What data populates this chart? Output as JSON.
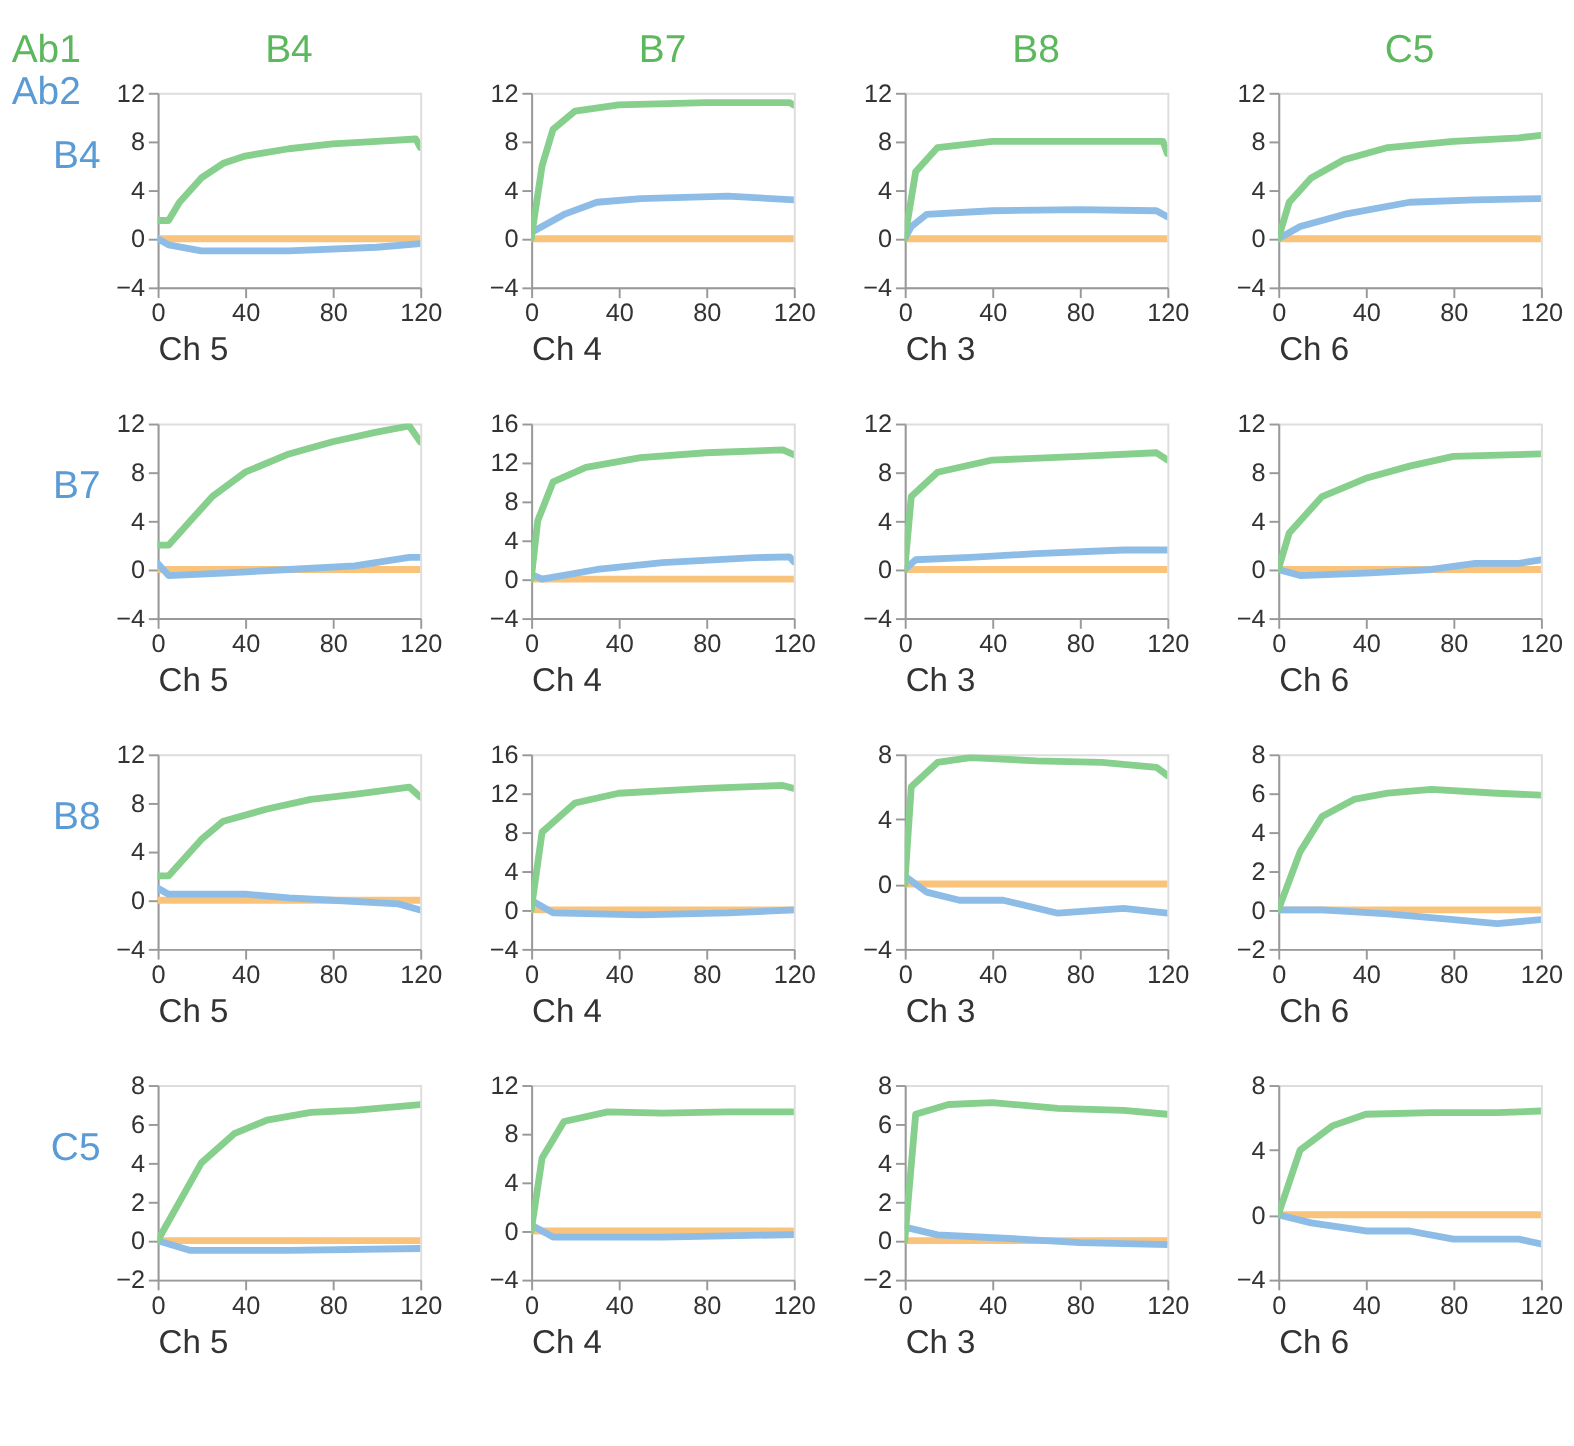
{
  "chart_data": [
    {
      "type": "line",
      "title": "B4",
      "ylabel": "B4",
      "xlabel": "Ch 5",
      "annotations": [
        "Ab1",
        "Ab2"
      ],
      "xlim": [
        0,
        120
      ],
      "xticks": [
        0,
        40,
        80,
        120
      ],
      "ylim": [
        -4,
        12
      ],
      "yticks": [
        -4,
        0,
        4,
        8,
        12
      ],
      "grid": false,
      "legend": false,
      "series": [
        {
          "color": "#86cf8c",
          "x": [
            0,
            5,
            10,
            20,
            30,
            40,
            60,
            80,
            100,
            118,
            120
          ],
          "values": [
            1.5,
            1.5,
            3,
            5,
            6.2,
            6.8,
            7.4,
            7.8,
            8,
            8.2,
            7.5
          ]
        },
        {
          "color": "#8dbde6",
          "x": [
            0,
            5,
            20,
            60,
            100,
            120
          ],
          "values": [
            0,
            -0.5,
            -1,
            -1,
            -0.7,
            -0.4
          ]
        },
        {
          "color": "#f9c37c",
          "x": [
            0,
            120
          ],
          "values": [
            0,
            0
          ]
        }
      ]
    },
    {
      "type": "line",
      "title": "B7",
      "xlabel": "Ch 4",
      "xlim": [
        0,
        120
      ],
      "xticks": [
        0,
        40,
        80,
        120
      ],
      "ylim": [
        -4,
        12
      ],
      "yticks": [
        -4,
        0,
        4,
        8,
        12
      ],
      "grid": false,
      "legend": false,
      "series": [
        {
          "color": "#86cf8c",
          "x": [
            0,
            5,
            10,
            20,
            40,
            80,
            118,
            120
          ],
          "values": [
            0,
            6,
            9,
            10.5,
            11,
            11.2,
            11.2,
            11
          ]
        },
        {
          "color": "#8dbde6",
          "x": [
            0,
            5,
            15,
            30,
            50,
            90,
            120
          ],
          "values": [
            0.5,
            1,
            2,
            3,
            3.3,
            3.5,
            3.2
          ]
        },
        {
          "color": "#f9c37c",
          "x": [
            0,
            120
          ],
          "values": [
            0,
            0
          ]
        }
      ]
    },
    {
      "type": "line",
      "title": "B8",
      "xlabel": "Ch 3",
      "xlim": [
        0,
        120
      ],
      "xticks": [
        0,
        40,
        80,
        120
      ],
      "ylim": [
        -4,
        12
      ],
      "yticks": [
        -4,
        0,
        4,
        8,
        12
      ],
      "grid": false,
      "legend": false,
      "series": [
        {
          "color": "#86cf8c",
          "x": [
            0,
            5,
            15,
            40,
            118,
            120
          ],
          "values": [
            0,
            5.5,
            7.5,
            8,
            8,
            7
          ]
        },
        {
          "color": "#8dbde6",
          "x": [
            0,
            3,
            10,
            40,
            80,
            115,
            120
          ],
          "values": [
            0,
            1,
            2,
            2.3,
            2.4,
            2.3,
            1.8
          ]
        },
        {
          "color": "#f9c37c",
          "x": [
            0,
            120
          ],
          "values": [
            0,
            0
          ]
        }
      ]
    },
    {
      "type": "line",
      "title": "C5",
      "xlabel": "Ch 6",
      "xlim": [
        0,
        120
      ],
      "xticks": [
        0,
        40,
        80,
        120
      ],
      "ylim": [
        -4,
        12
      ],
      "yticks": [
        -4,
        0,
        4,
        8,
        12
      ],
      "grid": false,
      "legend": false,
      "series": [
        {
          "color": "#86cf8c",
          "x": [
            0,
            5,
            15,
            30,
            50,
            80,
            110,
            120
          ],
          "values": [
            0,
            3,
            5,
            6.5,
            7.5,
            8,
            8.3,
            8.5
          ]
        },
        {
          "color": "#8dbde6",
          "x": [
            0,
            10,
            30,
            60,
            90,
            120
          ],
          "values": [
            0,
            1,
            2,
            3,
            3.2,
            3.3
          ]
        },
        {
          "color": "#f9c37c",
          "x": [
            0,
            120
          ],
          "values": [
            0,
            0
          ]
        }
      ]
    },
    {
      "type": "line",
      "ylabel": "B7",
      "xlabel": "Ch 5",
      "xlim": [
        0,
        120
      ],
      "xticks": [
        0,
        40,
        80,
        120
      ],
      "ylim": [
        -4,
        12
      ],
      "yticks": [
        -4,
        0,
        4,
        8,
        12
      ],
      "grid": false,
      "legend": false,
      "series": [
        {
          "color": "#86cf8c",
          "x": [
            0,
            5,
            15,
            25,
            40,
            60,
            80,
            100,
            115,
            120
          ],
          "values": [
            2,
            2,
            4,
            6,
            8,
            9.5,
            10.5,
            11.3,
            11.8,
            10.5
          ]
        },
        {
          "color": "#8dbde6",
          "x": [
            0,
            5,
            30,
            60,
            90,
            115,
            120
          ],
          "values": [
            0.5,
            -0.5,
            -0.3,
            0,
            0.3,
            1,
            1
          ]
        },
        {
          "color": "#f9c37c",
          "x": [
            0,
            120
          ],
          "values": [
            0,
            0
          ]
        }
      ]
    },
    {
      "type": "line",
      "xlabel": "Ch 4",
      "xlim": [
        0,
        120
      ],
      "xticks": [
        0,
        40,
        80,
        120
      ],
      "ylim": [
        -4,
        16
      ],
      "yticks": [
        -4,
        0,
        4,
        8,
        12,
        16
      ],
      "grid": false,
      "legend": false,
      "series": [
        {
          "color": "#86cf8c",
          "x": [
            0,
            3,
            10,
            25,
            50,
            80,
            115,
            120
          ],
          "values": [
            0,
            6,
            10,
            11.5,
            12.5,
            13,
            13.3,
            12.8
          ]
        },
        {
          "color": "#8dbde6",
          "x": [
            0,
            5,
            30,
            60,
            100,
            118,
            120
          ],
          "values": [
            0.5,
            0,
            1,
            1.7,
            2.2,
            2.3,
            1.8
          ]
        },
        {
          "color": "#f9c37c",
          "x": [
            0,
            120
          ],
          "values": [
            0,
            0
          ]
        }
      ]
    },
    {
      "type": "line",
      "xlabel": "Ch 3",
      "xlim": [
        0,
        120
      ],
      "xticks": [
        0,
        40,
        80,
        120
      ],
      "ylim": [
        -4,
        12
      ],
      "yticks": [
        -4,
        0,
        4,
        8,
        12
      ],
      "grid": false,
      "legend": false,
      "series": [
        {
          "color": "#86cf8c",
          "x": [
            0,
            3,
            15,
            40,
            80,
            115,
            120
          ],
          "values": [
            0,
            6,
            8,
            9,
            9.3,
            9.6,
            9
          ]
        },
        {
          "color": "#8dbde6",
          "x": [
            0,
            5,
            30,
            60,
            100,
            120
          ],
          "values": [
            0,
            0.8,
            1,
            1.3,
            1.6,
            1.6
          ]
        },
        {
          "color": "#f9c37c",
          "x": [
            0,
            120
          ],
          "values": [
            0,
            0
          ]
        }
      ]
    },
    {
      "type": "line",
      "xlabel": "Ch 6",
      "xlim": [
        0,
        120
      ],
      "xticks": [
        0,
        40,
        80,
        120
      ],
      "ylim": [
        -4,
        12
      ],
      "yticks": [
        -4,
        0,
        4,
        8,
        12
      ],
      "grid": false,
      "legend": false,
      "series": [
        {
          "color": "#86cf8c",
          "x": [
            0,
            5,
            20,
            40,
            60,
            80,
            120
          ],
          "values": [
            0,
            3,
            6,
            7.5,
            8.5,
            9.3,
            9.5
          ]
        },
        {
          "color": "#8dbde6",
          "x": [
            0,
            10,
            40,
            70,
            90,
            110,
            120
          ],
          "values": [
            0,
            -0.5,
            -0.3,
            0,
            0.5,
            0.5,
            0.8
          ]
        },
        {
          "color": "#f9c37c",
          "x": [
            0,
            120
          ],
          "values": [
            0,
            0
          ]
        }
      ]
    },
    {
      "type": "line",
      "ylabel": "B8",
      "xlabel": "Ch 5",
      "xlim": [
        0,
        120
      ],
      "xticks": [
        0,
        40,
        80,
        120
      ],
      "ylim": [
        -4,
        12
      ],
      "yticks": [
        -4,
        0,
        4,
        8,
        12
      ],
      "grid": false,
      "legend": false,
      "series": [
        {
          "color": "#86cf8c",
          "x": [
            0,
            5,
            20,
            30,
            50,
            70,
            90,
            115,
            120
          ],
          "values": [
            2,
            2,
            5,
            6.5,
            7.5,
            8.3,
            8.7,
            9.3,
            8.5
          ]
        },
        {
          "color": "#8dbde6",
          "x": [
            0,
            5,
            40,
            60,
            80,
            110,
            120
          ],
          "values": [
            1,
            0.5,
            0.5,
            0.2,
            0,
            -0.3,
            -0.8
          ]
        },
        {
          "color": "#f9c37c",
          "x": [
            0,
            120
          ],
          "values": [
            0,
            0
          ]
        }
      ]
    },
    {
      "type": "line",
      "xlabel": "Ch 4",
      "xlim": [
        0,
        120
      ],
      "xticks": [
        0,
        40,
        80,
        120
      ],
      "ylim": [
        -4,
        16
      ],
      "yticks": [
        -4,
        0,
        4,
        8,
        12,
        16
      ],
      "grid": false,
      "legend": false,
      "series": [
        {
          "color": "#86cf8c",
          "x": [
            0,
            5,
            20,
            40,
            80,
            115,
            120
          ],
          "values": [
            0,
            8,
            11,
            12,
            12.5,
            12.8,
            12.5
          ]
        },
        {
          "color": "#8dbde6",
          "x": [
            0,
            10,
            50,
            90,
            120
          ],
          "values": [
            1,
            -0.3,
            -0.5,
            -0.3,
            0
          ]
        },
        {
          "color": "#f9c37c",
          "x": [
            0,
            120
          ],
          "values": [
            0,
            0
          ]
        }
      ]
    },
    {
      "type": "line",
      "xlabel": "Ch 3",
      "xlim": [
        0,
        120
      ],
      "xticks": [
        0,
        40,
        80,
        120
      ],
      "ylim": [
        -4,
        8
      ],
      "yticks": [
        -4,
        0,
        4,
        8
      ],
      "grid": false,
      "legend": false,
      "series": [
        {
          "color": "#86cf8c",
          "x": [
            0,
            3,
            15,
            30,
            60,
            90,
            115,
            120
          ],
          "values": [
            0,
            6,
            7.5,
            7.8,
            7.6,
            7.5,
            7.2,
            6.7
          ]
        },
        {
          "color": "#8dbde6",
          "x": [
            0,
            10,
            25,
            45,
            70,
            100,
            120
          ],
          "values": [
            0.5,
            -0.5,
            -1,
            -1,
            -1.8,
            -1.5,
            -1.8
          ]
        },
        {
          "color": "#f9c37c",
          "x": [
            0,
            120
          ],
          "values": [
            0,
            0
          ]
        }
      ]
    },
    {
      "type": "line",
      "xlabel": "Ch 6",
      "xlim": [
        0,
        120
      ],
      "xticks": [
        0,
        40,
        80,
        120
      ],
      "ylim": [
        -2,
        8
      ],
      "yticks": [
        -2,
        0,
        2,
        4,
        6,
        8
      ],
      "grid": false,
      "legend": false,
      "series": [
        {
          "color": "#86cf8c",
          "x": [
            0,
            10,
            20,
            35,
            50,
            70,
            100,
            120
          ],
          "values": [
            0,
            3,
            4.8,
            5.7,
            6,
            6.2,
            6,
            5.9
          ]
        },
        {
          "color": "#8dbde6",
          "x": [
            0,
            20,
            50,
            80,
            100,
            120
          ],
          "values": [
            0,
            0,
            -0.2,
            -0.5,
            -0.7,
            -0.5
          ]
        },
        {
          "color": "#f9c37c",
          "x": [
            0,
            120
          ],
          "values": [
            0,
            0
          ]
        }
      ]
    },
    {
      "type": "line",
      "ylabel": "C5",
      "xlabel": "Ch 5",
      "xlim": [
        0,
        120
      ],
      "xticks": [
        0,
        40,
        80,
        120
      ],
      "ylim": [
        -2,
        8
      ],
      "yticks": [
        -2,
        0,
        2,
        4,
        6,
        8
      ],
      "grid": false,
      "legend": false,
      "series": [
        {
          "color": "#86cf8c",
          "x": [
            0,
            10,
            20,
            35,
            50,
            70,
            90,
            120
          ],
          "values": [
            0,
            2,
            4,
            5.5,
            6.2,
            6.6,
            6.7,
            7
          ]
        },
        {
          "color": "#8dbde6",
          "x": [
            0,
            15,
            60,
            120
          ],
          "values": [
            0,
            -0.5,
            -0.5,
            -0.4
          ]
        },
        {
          "color": "#f9c37c",
          "x": [
            0,
            120
          ],
          "values": [
            0,
            0
          ]
        }
      ]
    },
    {
      "type": "line",
      "xlabel": "Ch 4",
      "xlim": [
        0,
        120
      ],
      "xticks": [
        0,
        40,
        80,
        120
      ],
      "ylim": [
        -4,
        12
      ],
      "yticks": [
        -4,
        0,
        4,
        8,
        12
      ],
      "grid": false,
      "legend": false,
      "series": [
        {
          "color": "#86cf8c",
          "x": [
            0,
            5,
            15,
            35,
            60,
            90,
            120
          ],
          "values": [
            0,
            6,
            9,
            9.8,
            9.7,
            9.8,
            9.8
          ]
        },
        {
          "color": "#8dbde6",
          "x": [
            0,
            10,
            60,
            120
          ],
          "values": [
            0.5,
            -0.5,
            -0.5,
            -0.3
          ]
        },
        {
          "color": "#f9c37c",
          "x": [
            0,
            120
          ],
          "values": [
            0,
            0
          ]
        }
      ]
    },
    {
      "type": "line",
      "xlabel": "Ch 3",
      "xlim": [
        0,
        120
      ],
      "xticks": [
        0,
        40,
        80,
        120
      ],
      "ylim": [
        -2,
        8
      ],
      "yticks": [
        -2,
        0,
        2,
        4,
        6,
        8
      ],
      "grid": false,
      "legend": false,
      "series": [
        {
          "color": "#86cf8c",
          "x": [
            0,
            5,
            20,
            40,
            70,
            100,
            120
          ],
          "values": [
            0,
            6.5,
            7,
            7.1,
            6.8,
            6.7,
            6.5
          ]
        },
        {
          "color": "#8dbde6",
          "x": [
            0,
            15,
            50,
            80,
            120
          ],
          "values": [
            0.7,
            0.3,
            0.1,
            -0.1,
            -0.2
          ]
        },
        {
          "color": "#f9c37c",
          "x": [
            0,
            120
          ],
          "values": [
            0,
            0
          ]
        }
      ]
    },
    {
      "type": "line",
      "xlabel": "Ch 6",
      "xlim": [
        0,
        120
      ],
      "xticks": [
        0,
        40,
        80,
        120
      ],
      "ylim": [
        -4,
        8
      ],
      "yticks": [
        -4,
        0,
        4,
        8
      ],
      "grid": false,
      "legend": false,
      "series": [
        {
          "color": "#86cf8c",
          "x": [
            0,
            10,
            25,
            40,
            70,
            100,
            120
          ],
          "values": [
            0,
            4,
            5.5,
            6.2,
            6.3,
            6.3,
            6.4
          ]
        },
        {
          "color": "#8dbde6",
          "x": [
            0,
            15,
            40,
            60,
            80,
            110,
            120
          ],
          "values": [
            0,
            -0.5,
            -1,
            -1,
            -1.5,
            -1.5,
            -1.8
          ]
        },
        {
          "color": "#f9c37c",
          "x": [
            0,
            120
          ],
          "values": [
            0,
            0
          ]
        }
      ]
    }
  ]
}
